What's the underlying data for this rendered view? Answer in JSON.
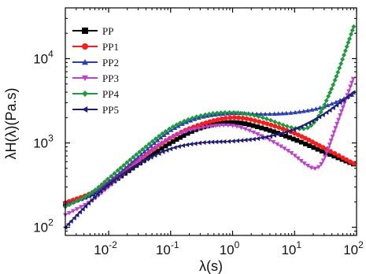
{
  "chart_data": {
    "type": "line",
    "xscale": "log",
    "yscale": "log",
    "xlabel": "λ(s)",
    "ylabel": "λH(λ)(Pa.s)",
    "xlim": [
      0.002,
      100
    ],
    "ylim": [
      80,
      40000
    ],
    "x_ticks": [
      {
        "value": 0.01,
        "base": "10",
        "exp": "-2"
      },
      {
        "value": 0.1,
        "base": "10",
        "exp": "-1"
      },
      {
        "value": 1,
        "base": "10",
        "exp": "0"
      },
      {
        "value": 10,
        "base": "10",
        "exp": "1"
      },
      {
        "value": 100,
        "base": "10",
        "exp": "2"
      }
    ],
    "y_ticks": [
      {
        "value": 100,
        "base": "10",
        "exp": "2"
      },
      {
        "value": 1000,
        "base": "10",
        "exp": "3"
      },
      {
        "value": 10000,
        "base": "10",
        "exp": "4"
      }
    ],
    "legend_position": "top-left",
    "series": [
      {
        "name": "PP",
        "color": "#000000",
        "marker": "square",
        "x": [
          0.002,
          0.005,
          0.01,
          0.03,
          0.1,
          0.3,
          1,
          3,
          10,
          30,
          90
        ],
        "y": [
          190,
          240,
          320,
          560,
          1000,
          1500,
          1750,
          1500,
          1100,
          780,
          560
        ]
      },
      {
        "name": "PP1",
        "color": "#ff1a1a",
        "marker": "circle",
        "x": [
          0.002,
          0.005,
          0.01,
          0.03,
          0.1,
          0.3,
          1,
          3,
          10,
          30,
          90
        ],
        "y": [
          195,
          250,
          340,
          620,
          1150,
          1650,
          2000,
          1750,
          1300,
          870,
          570
        ]
      },
      {
        "name": "PP2",
        "color": "#2a3fb5",
        "marker": "triangle-up",
        "x": [
          0.002,
          0.005,
          0.01,
          0.03,
          0.1,
          0.3,
          1,
          3,
          10,
          30,
          90
        ],
        "y": [
          185,
          240,
          340,
          680,
          1400,
          2000,
          2250,
          2200,
          2300,
          2700,
          3800
        ]
      },
      {
        "name": "PP3",
        "color": "#c040d0",
        "marker": "triangle-down",
        "x": [
          0.002,
          0.005,
          0.01,
          0.03,
          0.1,
          0.3,
          1,
          3,
          8,
          15,
          22,
          30,
          50,
          90
        ],
        "y": [
          140,
          200,
          300,
          600,
          1150,
          1500,
          1600,
          1200,
          800,
          560,
          500,
          650,
          1800,
          6000
        ]
      },
      {
        "name": "PP4",
        "color": "#1e9b3c",
        "marker": "diamond",
        "x": [
          0.002,
          0.005,
          0.01,
          0.03,
          0.1,
          0.3,
          1,
          3,
          10,
          20,
          40,
          90
        ],
        "y": [
          175,
          250,
          380,
          760,
          1500,
          2100,
          2300,
          2000,
          1500,
          1700,
          4500,
          24000
        ]
      },
      {
        "name": "PP5",
        "color": "#1e1e78",
        "marker": "triangle-left",
        "x": [
          0.002,
          0.005,
          0.01,
          0.03,
          0.1,
          0.3,
          1,
          3,
          10,
          30,
          90
        ],
        "y": [
          100,
          200,
          320,
          560,
          850,
          1000,
          1050,
          1150,
          1450,
          2200,
          4000
        ]
      }
    ]
  }
}
